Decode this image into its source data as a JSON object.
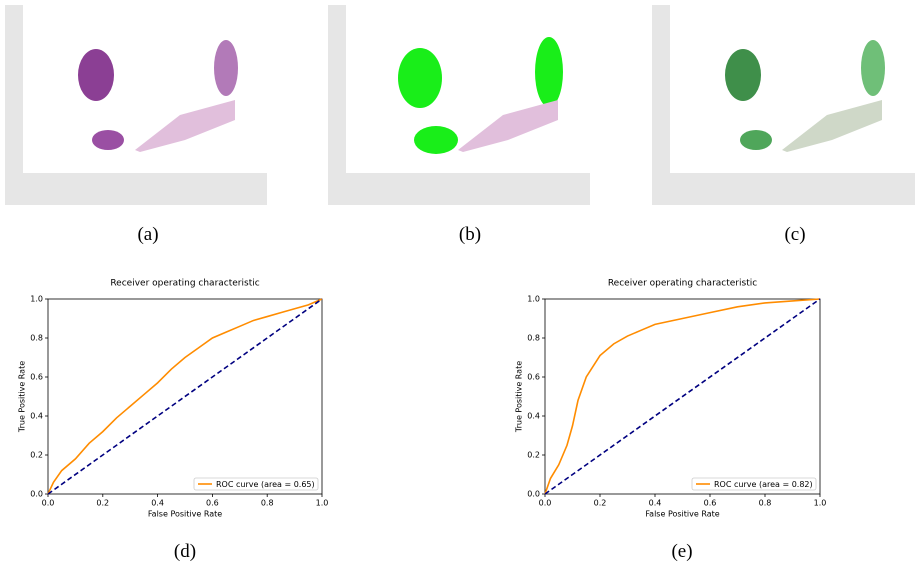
{
  "captions": [
    "(a)",
    "(b)",
    "(c)",
    "(d)",
    "(e)"
  ],
  "chart_data": [
    {
      "type": "line",
      "title": "Receiver operating characteristic",
      "x_label": "False Positive Rate",
      "y_label": "True Positive Rate",
      "xlim": [
        0,
        1
      ],
      "ylim": [
        0,
        1
      ],
      "xticks": [
        {
          "value": 0,
          "label": "0.0"
        },
        0.2,
        0.4,
        0.6,
        0.8,
        {
          "value": 1,
          "label": "1.0"
        }
      ],
      "yticks": [
        {
          "value": 0,
          "label": "0.0"
        },
        0.2,
        0.4,
        0.6,
        0.8,
        {
          "value": 1,
          "label": "1.0"
        }
      ],
      "legend": "lower right",
      "series": [
        {
          "name": "ROC curve (area = 0.65)",
          "color": "#ff8c00",
          "x": [
            0,
            0.02,
            0.05,
            0.1,
            0.15,
            0.2,
            0.25,
            0.3,
            0.35,
            0.4,
            0.45,
            0.5,
            0.55,
            0.6,
            0.65,
            0.7,
            0.75,
            0.8,
            0.85,
            0.9,
            0.95,
            1
          ],
          "values": [
            0,
            0.06,
            0.12,
            0.18,
            0.26,
            0.32,
            0.39,
            0.45,
            0.51,
            0.57,
            0.64,
            0.7,
            0.75,
            0.8,
            0.83,
            0.86,
            0.89,
            0.91,
            0.93,
            0.95,
            0.97,
            1
          ]
        },
        {
          "color": "#000080",
          "style": "dashed",
          "x": [
            0,
            1
          ],
          "values": [
            0,
            1
          ]
        }
      ]
    },
    {
      "type": "line",
      "title": "Receiver operating characteristic",
      "x_label": "False Positive Rate",
      "y_label": "True Positive Rate",
      "xlim": [
        0,
        1
      ],
      "ylim": [
        0,
        1
      ],
      "xticks": [
        {
          "value": 0,
          "label": "0.0"
        },
        0.2,
        0.4,
        0.6,
        0.8,
        {
          "value": 1,
          "label": "1.0"
        }
      ],
      "yticks": [
        {
          "value": 0,
          "label": "0.0"
        },
        0.2,
        0.4,
        0.6,
        0.8,
        {
          "value": 1,
          "label": "1.0"
        }
      ],
      "legend": "lower right",
      "series": [
        {
          "name": "ROC curve (area = 0.82)",
          "color": "#ff8c00",
          "x": [
            0,
            0.02,
            0.05,
            0.08,
            0.1,
            0.12,
            0.15,
            0.2,
            0.25,
            0.3,
            0.35,
            0.4,
            0.5,
            0.6,
            0.7,
            0.8,
            0.9,
            1
          ],
          "values": [
            0,
            0.08,
            0.15,
            0.25,
            0.35,
            0.48,
            0.6,
            0.71,
            0.77,
            0.81,
            0.84,
            0.87,
            0.9,
            0.93,
            0.96,
            0.98,
            0.99,
            1
          ]
        },
        {
          "color": "#000080",
          "style": "dashed",
          "x": [
            0,
            1
          ],
          "values": [
            0,
            1
          ]
        }
      ]
    }
  ]
}
